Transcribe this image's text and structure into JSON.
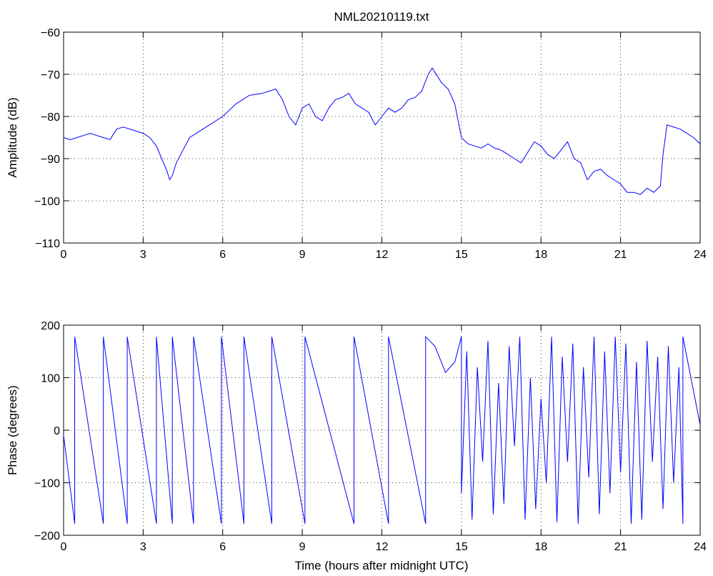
{
  "chart_data": [
    {
      "type": "line",
      "title": "NML20210119.txt",
      "xlabel": "",
      "ylabel": "Amplitude (dB)",
      "xlim": [
        0,
        24
      ],
      "ylim": [
        -110,
        -60
      ],
      "xticks": [
        0,
        3,
        6,
        9,
        12,
        15,
        18,
        21,
        24
      ],
      "yticks": [
        -110,
        -100,
        -90,
        -80,
        -70,
        -60
      ],
      "ytick_labels": [
        "−110",
        "−100",
        "−90",
        "−80",
        "−70",
        "−60"
      ],
      "grid": true,
      "color": "#0000ff",
      "series": [
        {
          "x": [
            0,
            0.25,
            0.5,
            0.75,
            1.0,
            1.25,
            1.5,
            1.75,
            2.0,
            2.25,
            2.5,
            2.75,
            3.0,
            3.25,
            3.5,
            3.7,
            3.9,
            4.0,
            4.1,
            4.25,
            4.5,
            4.75,
            5.0,
            5.5,
            6.0,
            6.5,
            7.0,
            7.5,
            7.75,
            8.0,
            8.25,
            8.5,
            8.75,
            9.0,
            9.25,
            9.5,
            9.75,
            10.0,
            10.25,
            10.5,
            10.75,
            11.0,
            11.25,
            11.5,
            11.75,
            12.0,
            12.25,
            12.5,
            12.75,
            13.0,
            13.25,
            13.5,
            13.75,
            13.9,
            14.0,
            14.25,
            14.5,
            14.75,
            15.0,
            15.25,
            15.5,
            15.75,
            16.0,
            16.25,
            16.5,
            16.75,
            17.0,
            17.25,
            17.5,
            17.75,
            18.0,
            18.25,
            18.5,
            18.75,
            19.0,
            19.25,
            19.5,
            19.75,
            20.0,
            20.25,
            20.5,
            20.75,
            21.0,
            21.25,
            21.5,
            21.75,
            22.0,
            22.25,
            22.5,
            22.6,
            22.75,
            23.0,
            23.25,
            23.5,
            23.75,
            24.0
          ],
          "y": [
            -85,
            -85.5,
            -85,
            -84.5,
            -84,
            -84.5,
            -85,
            -85.5,
            -83,
            -82.5,
            -83,
            -83.5,
            -84,
            -85,
            -87,
            -90,
            -93,
            -95,
            -94,
            -91,
            -88,
            -85,
            -84,
            -82,
            -80,
            -77,
            -75,
            -74.5,
            -74,
            -73.5,
            -76,
            -80,
            -82,
            -78,
            -77,
            -80,
            -81,
            -78,
            -76,
            -75.5,
            -74.5,
            -77,
            -78,
            -79,
            -82,
            -80,
            -78,
            -79,
            -78,
            -76,
            -75.5,
            -74,
            -70,
            -68.5,
            -69.5,
            -72,
            -73.5,
            -77,
            -85,
            -86.5,
            -87,
            -87.5,
            -86.5,
            -87.5,
            -88,
            -89,
            -90,
            -91,
            -88.5,
            -86,
            -87,
            -89,
            -90,
            -88,
            -86,
            -90,
            -91,
            -95,
            -93,
            -92.5,
            -94,
            -95,
            -96,
            -98,
            -98,
            -98.5,
            -97,
            -98,
            -96.5,
            -89,
            -82,
            -82.5,
            -83,
            -84,
            -85,
            -86.5
          ]
        }
      ]
    },
    {
      "type": "line",
      "title": "",
      "xlabel": "Time (hours after midnight UTC)",
      "ylabel": "Phase (degrees)",
      "xlim": [
        0,
        24
      ],
      "ylim": [
        -200,
        200
      ],
      "xticks": [
        0,
        3,
        6,
        9,
        12,
        15,
        18,
        21,
        24
      ],
      "yticks": [
        -200,
        -100,
        0,
        100,
        200
      ],
      "ytick_labels": [
        "−200",
        "−100",
        "0",
        "100",
        "200"
      ],
      "grid": true,
      "color": "#0000ff",
      "series": [
        {
          "x": [
            0,
            0.42,
            0.42,
            1.5,
            1.5,
            2.4,
            2.4,
            3.5,
            3.5,
            4.1,
            4.1,
            4.9,
            4.9,
            5.95,
            5.95,
            6.8,
            6.8,
            7.85,
            7.85,
            9.1,
            9.1,
            10.95,
            10.95,
            12.25,
            12.25,
            13.65,
            13.65,
            14.0,
            14.4,
            14.75,
            15.0,
            15.0,
            15.2,
            15.4,
            15.6,
            15.8,
            16.0,
            16.2,
            16.4,
            16.6,
            16.8,
            17.0,
            17.2,
            17.4,
            17.6,
            17.8,
            18.0,
            18.2,
            18.4,
            18.6,
            18.8,
            19.0,
            19.2,
            19.4,
            19.6,
            19.8,
            20.0,
            20.2,
            20.4,
            20.6,
            20.8,
            21.0,
            21.2,
            21.4,
            21.6,
            21.8,
            22.0,
            22.2,
            22.4,
            22.6,
            22.8,
            23.0,
            23.2,
            23.35,
            23.35,
            24.0
          ],
          "y": [
            -10,
            -178,
            178,
            -178,
            178,
            -178,
            178,
            -178,
            178,
            -178,
            178,
            -178,
            178,
            -178,
            178,
            -178,
            178,
            -178,
            178,
            -178,
            178,
            -178,
            178,
            -178,
            178,
            -178,
            178,
            160,
            110,
            130,
            178,
            -120,
            150,
            -170,
            120,
            -60,
            170,
            -160,
            90,
            -140,
            160,
            -30,
            178,
            -170,
            100,
            -150,
            60,
            -100,
            178,
            -175,
            140,
            -60,
            165,
            -178,
            120,
            -90,
            178,
            -160,
            150,
            -120,
            178,
            -80,
            165,
            -178,
            130,
            -170,
            170,
            -60,
            140,
            -150,
            160,
            -100,
            120,
            -178,
            178,
            10
          ]
        }
      ]
    }
  ]
}
